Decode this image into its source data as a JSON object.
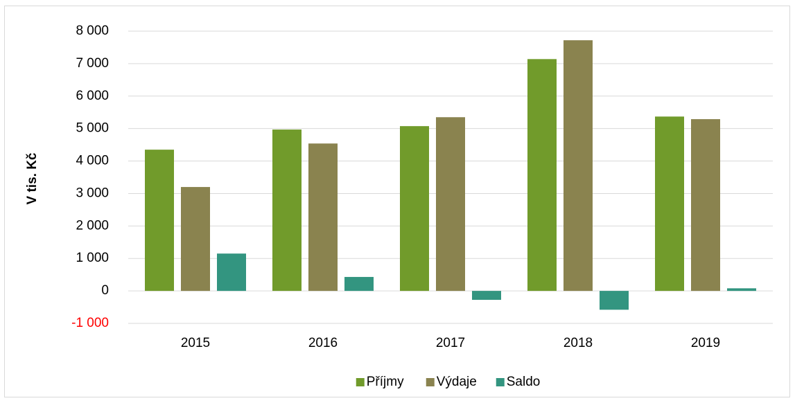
{
  "chart_data": {
    "type": "bar",
    "y_label": "V tis. Kč",
    "categories": [
      "2015",
      "2016",
      "2017",
      "2018",
      "2019"
    ],
    "series": [
      {
        "name": "Příjmy",
        "color": "#719b2b",
        "values": [
          4350,
          4970,
          5075,
          7140,
          5370
        ]
      },
      {
        "name": "Výdaje",
        "color": "#8a834f",
        "values": [
          3200,
          4540,
          5350,
          7720,
          5290
        ]
      },
      {
        "name": "Saldo",
        "color": "#339580",
        "values": [
          1150,
          430,
          -275,
          -580,
          80
        ]
      }
    ],
    "ylim": [
      -1000,
      8000
    ],
    "yticks": [
      {
        "value": -1000,
        "label": "-1 000"
      },
      0,
      {
        "value": 1000,
        "label": "1 000"
      },
      {
        "value": 2000,
        "label": "2 000"
      },
      {
        "value": 3000,
        "label": "3 000"
      },
      {
        "value": 4000,
        "label": "4 000"
      },
      {
        "value": 5000,
        "label": "5 000"
      },
      {
        "value": 6000,
        "label": "6 000"
      },
      {
        "value": 7000,
        "label": "7 000"
      },
      {
        "value": 8000,
        "label": "8 000"
      }
    ],
    "negative_tick_color": "#ff0000",
    "grid": true,
    "legend": "bottom"
  }
}
